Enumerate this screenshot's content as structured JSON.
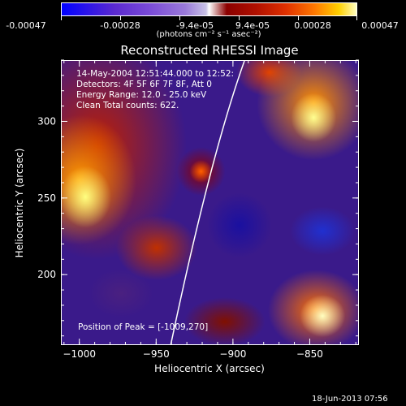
{
  "colorbar": {
    "labels": [
      "-0.00047",
      "-0.00028",
      "-9.4e-05",
      "9.4e-05",
      "0.00028",
      "0.00047"
    ],
    "unit": "(photons cm⁻² s⁻¹ asec⁻²)"
  },
  "title": "Reconstructed RHESSI Image",
  "info": {
    "line1": "14-May-2004 12:51:44.000 to 12:52:",
    "line2": "Detectors: 4F 5F 6F 7F 8F, Att 0",
    "line3": "Energy Range: 12.0 - 25.0 keV",
    "line4": "Clean     Total counts: 622."
  },
  "peak_label": "Position of Peak = [-1009,270]",
  "timestamp": "18-Jun-2013 07:56",
  "chart_data": {
    "type": "heatmap",
    "title": "Reconstructed RHESSI Image",
    "xlabel": "Heliocentric X (arcsec)",
    "ylabel": "Heliocentric Y (arcsec)",
    "xlim": [
      -1012,
      -818
    ],
    "ylim": [
      154,
      340
    ],
    "xticks": [
      -1000,
      -950,
      -900,
      -850
    ],
    "yticks": [
      200,
      250,
      300
    ],
    "xtick_labels": [
      "−1000",
      "−950",
      "−900",
      "−850"
    ],
    "ytick_labels": [
      "200",
      "250",
      "300"
    ],
    "colorscale_range": [
      -0.00047,
      0.00047
    ],
    "peak": [
      -1009,
      270
    ]
  }
}
